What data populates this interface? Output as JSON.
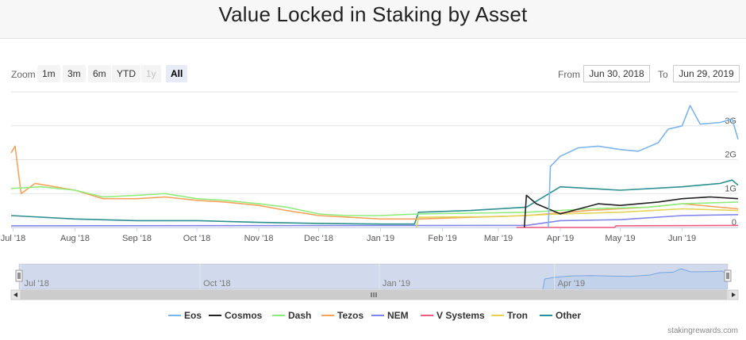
{
  "header": {
    "title": "Value Locked in Staking by Asset"
  },
  "toolbar": {
    "zoom_label": "Zoom",
    "zoom_buttons": [
      "1m",
      "3m",
      "6m",
      "YTD",
      "1y",
      "All"
    ],
    "active_zoom": "All",
    "disabled_zoom": "1y",
    "from_label": "From",
    "from_value": "Jun 30, 2018",
    "to_label": "To",
    "to_value": "Jun 29, 2019"
  },
  "credit": "stakingrewards.com",
  "chart_data": {
    "type": "line",
    "title": "Value Locked in Staking by Asset",
    "x_range": [
      "2018-06-30",
      "2019-06-29"
    ],
    "x_ticks": [
      "Jul '18",
      "Aug '18",
      "Sep '18",
      "Oct '18",
      "Nov '18",
      "Dec '18",
      "Jan '19",
      "Feb '19",
      "Mar '19",
      "Apr '19",
      "May '19",
      "Jun '19"
    ],
    "y_ticks": [
      "0",
      "1G",
      "2G",
      "3G"
    ],
    "y_range": [
      0,
      4000000000
    ],
    "legend_position": "bottom-center",
    "navigator_ticks": [
      "Jul '18",
      "Oct '18",
      "Jan '19",
      "Apr '19"
    ],
    "series": [
      {
        "name": "Eos",
        "color": "#7cb5ec",
        "points": [
          [
            "2019-03-26",
            0
          ],
          [
            "2019-03-27",
            1800000000
          ],
          [
            "2019-04-01",
            2100000000
          ],
          [
            "2019-04-10",
            2350000000
          ],
          [
            "2019-04-20",
            2400000000
          ],
          [
            "2019-05-01",
            2300000000
          ],
          [
            "2019-05-10",
            2250000000
          ],
          [
            "2019-05-20",
            2500000000
          ],
          [
            "2019-05-25",
            2900000000
          ],
          [
            "2019-06-01",
            3000000000
          ],
          [
            "2019-06-05",
            3600000000
          ],
          [
            "2019-06-10",
            3050000000
          ],
          [
            "2019-06-20",
            3100000000
          ],
          [
            "2019-06-26",
            3200000000
          ],
          [
            "2019-06-29",
            2600000000
          ]
        ]
      },
      {
        "name": "Cosmos",
        "color": "#222222",
        "points": [
          [
            "2019-03-14",
            0
          ],
          [
            "2019-03-15",
            950000000
          ],
          [
            "2019-03-20",
            700000000
          ],
          [
            "2019-04-01",
            400000000
          ],
          [
            "2019-04-20",
            700000000
          ],
          [
            "2019-05-01",
            650000000
          ],
          [
            "2019-05-20",
            750000000
          ],
          [
            "2019-06-01",
            850000000
          ],
          [
            "2019-06-15",
            900000000
          ],
          [
            "2019-06-29",
            850000000
          ]
        ]
      },
      {
        "name": "Dash",
        "color": "#90ed7d",
        "points": [
          [
            "2018-06-30",
            1150000000
          ],
          [
            "2018-07-15",
            1200000000
          ],
          [
            "2018-08-01",
            1100000000
          ],
          [
            "2018-08-15",
            900000000
          ],
          [
            "2018-09-01",
            950000000
          ],
          [
            "2018-09-15",
            1000000000
          ],
          [
            "2018-10-01",
            850000000
          ],
          [
            "2018-10-15",
            800000000
          ],
          [
            "2018-11-01",
            700000000
          ],
          [
            "2018-11-15",
            600000000
          ],
          [
            "2018-12-01",
            400000000
          ],
          [
            "2018-12-15",
            350000000
          ],
          [
            "2019-01-01",
            350000000
          ],
          [
            "2019-01-20",
            400000000
          ],
          [
            "2019-02-15",
            420000000
          ],
          [
            "2019-03-15",
            450000000
          ],
          [
            "2019-04-15",
            550000000
          ],
          [
            "2019-05-15",
            600000000
          ],
          [
            "2019-06-01",
            700000000
          ],
          [
            "2019-06-29",
            750000000
          ]
        ]
      },
      {
        "name": "Tezos",
        "color": "#f7a35c",
        "points": [
          [
            "2018-06-30",
            2200000000
          ],
          [
            "2018-07-02",
            2400000000
          ],
          [
            "2018-07-05",
            1000000000
          ],
          [
            "2018-07-12",
            1300000000
          ],
          [
            "2018-08-01",
            1100000000
          ],
          [
            "2018-08-15",
            850000000
          ],
          [
            "2018-09-01",
            850000000
          ],
          [
            "2018-09-15",
            900000000
          ],
          [
            "2018-10-01",
            800000000
          ],
          [
            "2018-10-15",
            750000000
          ],
          [
            "2018-11-01",
            650000000
          ],
          [
            "2018-11-15",
            500000000
          ],
          [
            "2018-12-01",
            350000000
          ],
          [
            "2019-01-01",
            250000000
          ],
          [
            "2019-01-20",
            250000000
          ],
          [
            "2019-02-15",
            300000000
          ],
          [
            "2019-03-15",
            350000000
          ],
          [
            "2019-04-15",
            500000000
          ],
          [
            "2019-05-15",
            600000000
          ],
          [
            "2019-06-01",
            700000000
          ],
          [
            "2019-06-29",
            550000000
          ]
        ]
      },
      {
        "name": "NEM",
        "color": "#8085e9",
        "points": [
          [
            "2018-06-30",
            50000000
          ],
          [
            "2019-03-15",
            60000000
          ],
          [
            "2019-04-01",
            200000000
          ],
          [
            "2019-05-01",
            230000000
          ],
          [
            "2019-06-01",
            350000000
          ],
          [
            "2019-06-29",
            380000000
          ]
        ]
      },
      {
        "name": "V Systems",
        "color": "#f15c80",
        "points": [
          [
            "2019-03-10",
            0
          ],
          [
            "2019-04-28",
            0
          ],
          [
            "2019-04-29",
            50000000
          ],
          [
            "2019-06-29",
            60000000
          ]
        ]
      },
      {
        "name": "Tron",
        "color": "#e4d354",
        "points": [
          [
            "2019-01-19",
            0
          ],
          [
            "2019-01-20",
            300000000
          ],
          [
            "2019-03-01",
            320000000
          ],
          [
            "2019-04-01",
            400000000
          ],
          [
            "2019-05-01",
            450000000
          ],
          [
            "2019-06-01",
            550000000
          ],
          [
            "2019-06-29",
            500000000
          ]
        ]
      },
      {
        "name": "Other",
        "color": "#2b908f",
        "points": [
          [
            "2018-06-30",
            350000000
          ],
          [
            "2018-08-01",
            250000000
          ],
          [
            "2018-09-01",
            200000000
          ],
          [
            "2018-10-01",
            200000000
          ],
          [
            "2018-11-01",
            150000000
          ],
          [
            "2018-12-01",
            120000000
          ],
          [
            "2019-01-01",
            100000000
          ],
          [
            "2019-01-18",
            100000000
          ],
          [
            "2019-01-20",
            450000000
          ],
          [
            "2019-02-15",
            500000000
          ],
          [
            "2019-03-15",
            600000000
          ],
          [
            "2019-04-01",
            1200000000
          ],
          [
            "2019-05-01",
            1100000000
          ],
          [
            "2019-06-01",
            1200000000
          ],
          [
            "2019-06-20",
            1300000000
          ],
          [
            "2019-06-26",
            1400000000
          ],
          [
            "2019-06-29",
            1250000000
          ]
        ]
      }
    ]
  }
}
